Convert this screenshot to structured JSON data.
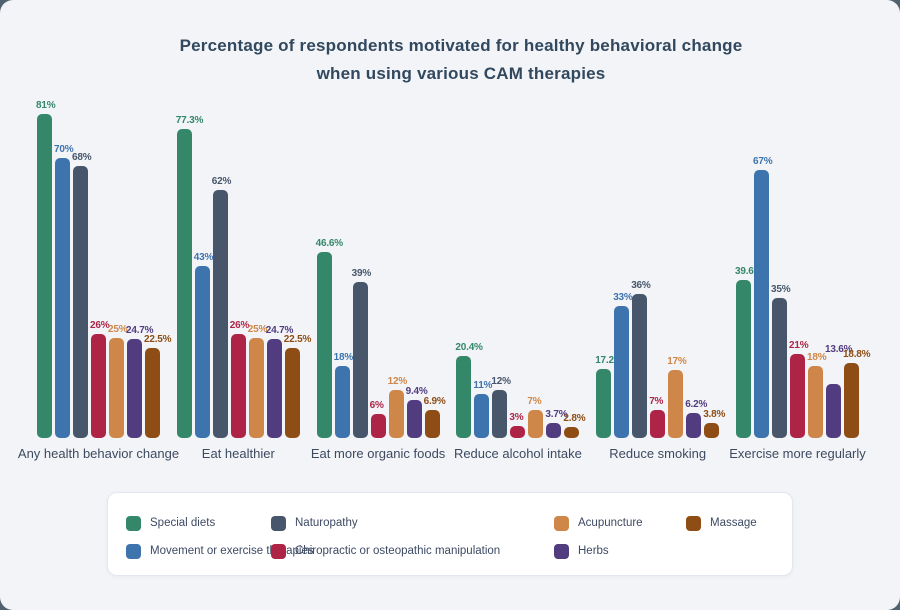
{
  "page": {
    "outer_background": "#51626e",
    "panel_background": "#f2f4f7"
  },
  "title": {
    "line1": "Percentage of respondents motivated for healthy behavioral change",
    "line2": "when using various CAM therapies"
  },
  "chart_data": {
    "type": "bar",
    "title": "Percentage of respondents motivated for healthy behavioral change when using various CAM therapies",
    "value_suffix": "%",
    "ylim": [
      0,
      85
    ],
    "grid": false,
    "axes_shown": false,
    "legend_position": "bottom",
    "categories": [
      "Any health behavior change",
      "Eat healthier",
      "Eat more organic foods",
      "Reduce alcohol intake",
      "Reduce smoking",
      "Exercise more regularly"
    ],
    "series": [
      {
        "name": "Special diets",
        "color": "#348768",
        "values": [
          81,
          77.3,
          46.6,
          20.4,
          17.2,
          39.6
        ]
      },
      {
        "name": "Movement or exercise therapies",
        "color": "#3e74ae",
        "values": [
          70,
          43,
          18,
          11,
          33,
          67
        ]
      },
      {
        "name": "Naturopathy",
        "color": "#47566b",
        "values": [
          68,
          62,
          39,
          12,
          36,
          35
        ]
      },
      {
        "name": "Chiropractic or osteopathic manipulation",
        "color": "#ad2446",
        "values": [
          26,
          26,
          6,
          3,
          7,
          21
        ]
      },
      {
        "name": "Acupuncture",
        "color": "#cf8749",
        "values": [
          25,
          25,
          12,
          7,
          17,
          18
        ]
      },
      {
        "name": "Herbs",
        "color": "#523c80",
        "values": [
          24.7,
          24.7,
          9.4,
          3.7,
          6.2,
          13.6
        ],
        "label_raise": [
          0,
          0,
          0,
          0,
          0,
          26
        ]
      },
      {
        "name": "Massage",
        "color": "#8e4d15",
        "values": [
          22.5,
          22.5,
          6.9,
          2.8,
          3.8,
          18.8
        ]
      }
    ]
  },
  "legend": {
    "items": [
      {
        "label": "Special diets",
        "color": "#348768"
      },
      {
        "label": "Naturopathy",
        "color": "#47566b"
      },
      {
        "label": "Acupuncture",
        "color": "#cf8749"
      },
      {
        "label": "Massage",
        "color": "#8e4d15"
      },
      {
        "label": "Movement or exercise therapies",
        "color": "#3e74ae"
      },
      {
        "label": "Chiropractic or osteopathic manipulation",
        "color": "#ad2446"
      },
      {
        "label": "Herbs",
        "color": "#523c80"
      }
    ]
  }
}
